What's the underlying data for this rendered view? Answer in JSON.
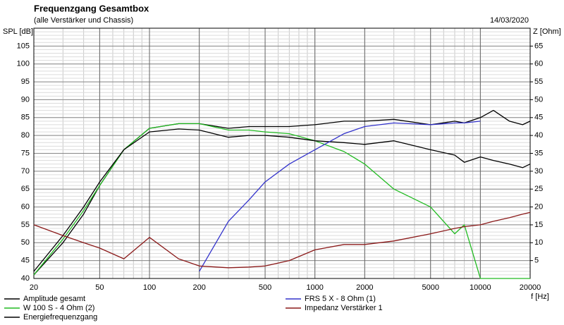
{
  "chart_data": {
    "type": "line",
    "title": "Frequenzgang Gesamtbox",
    "subtitle": "(alle Verstärker und Chassis)",
    "date": "14/03/2020",
    "y_label": "SPL [dB]",
    "y2_label": "Z [Ohm]",
    "x_label": "f [Hz]",
    "x_scale": "log",
    "grid": true,
    "minor_grid": true,
    "legend_position": "bottom",
    "x": [
      20,
      30,
      40,
      50,
      70,
      100,
      150,
      200,
      300,
      400,
      500,
      700,
      1000,
      1500,
      2000,
      3000,
      5000,
      7000,
      8000,
      10000,
      12000,
      15000,
      18000,
      20000
    ],
    "xlim": [
      20,
      20000
    ],
    "xticks": [
      20,
      50,
      100,
      200,
      500,
      1000,
      2000,
      5000,
      10000,
      20000
    ],
    "ylim": [
      40,
      110
    ],
    "yticks": [
      40,
      45,
      50,
      55,
      60,
      65,
      70,
      75,
      80,
      85,
      90,
      95,
      100,
      105
    ],
    "y2lim": [
      0,
      70
    ],
    "y2ticks": [
      5,
      10,
      15,
      20,
      25,
      30,
      35,
      40,
      45,
      50,
      55,
      60,
      65
    ],
    "series": [
      {
        "name": "Amplitude gesamt",
        "color": "#000000",
        "values": [
          41,
          50,
          58,
          66,
          76,
          82,
          83.3,
          83.3,
          82,
          82.5,
          82.5,
          82.5,
          83,
          84,
          84,
          84.5,
          83,
          84,
          83.5,
          85,
          87,
          84,
          83,
          84
        ]
      },
      {
        "name": "W 100 S - 4 Ohm (2)",
        "color": "#22bb22",
        "values": [
          41,
          51,
          59,
          66,
          76,
          82,
          83.3,
          83.3,
          81.5,
          81.5,
          81,
          80.5,
          78.5,
          75.5,
          72,
          65,
          60,
          52.5,
          55,
          40,
          40,
          40,
          40,
          40
        ]
      },
      {
        "name": "Energiefrequenzgang",
        "color": "#000000",
        "values": [
          42,
          52,
          60,
          67,
          76,
          81,
          81.8,
          81.5,
          79.5,
          80,
          80,
          79.5,
          78.5,
          78,
          77.5,
          78.5,
          76,
          74.5,
          72.5,
          74,
          73,
          72,
          71,
          72
        ]
      },
      {
        "name": "FRS 5 X - 8 Ohm (1)",
        "color": "#3333cc",
        "values": [
          null,
          null,
          null,
          null,
          null,
          null,
          null,
          42,
          56,
          62,
          67,
          72,
          76,
          80.5,
          82.5,
          83.5,
          83,
          83.5,
          83.5,
          84,
          null,
          null,
          null,
          null
        ]
      },
      {
        "name": "Impedanz Verstärker 1",
        "color": "#8b1a1a",
        "axis": "y2",
        "values": [
          15,
          12,
          10,
          8.5,
          5.5,
          11.5,
          5.5,
          3.5,
          3,
          3.2,
          3.5,
          5,
          8,
          9.5,
          9.5,
          10.5,
          12.5,
          14,
          14.5,
          15,
          16,
          17,
          18,
          18.5
        ]
      }
    ]
  }
}
